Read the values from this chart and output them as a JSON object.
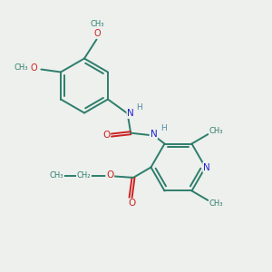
{
  "background_color": "#edf0ed",
  "bond_color": "#2d7d6b",
  "N_color": "#2222cc",
  "O_color": "#cc2222",
  "H_color": "#5588aa",
  "figsize": [
    3.0,
    3.0
  ],
  "dpi": 100,
  "xlim": [
    0,
    10
  ],
  "ylim": [
    0,
    10
  ]
}
